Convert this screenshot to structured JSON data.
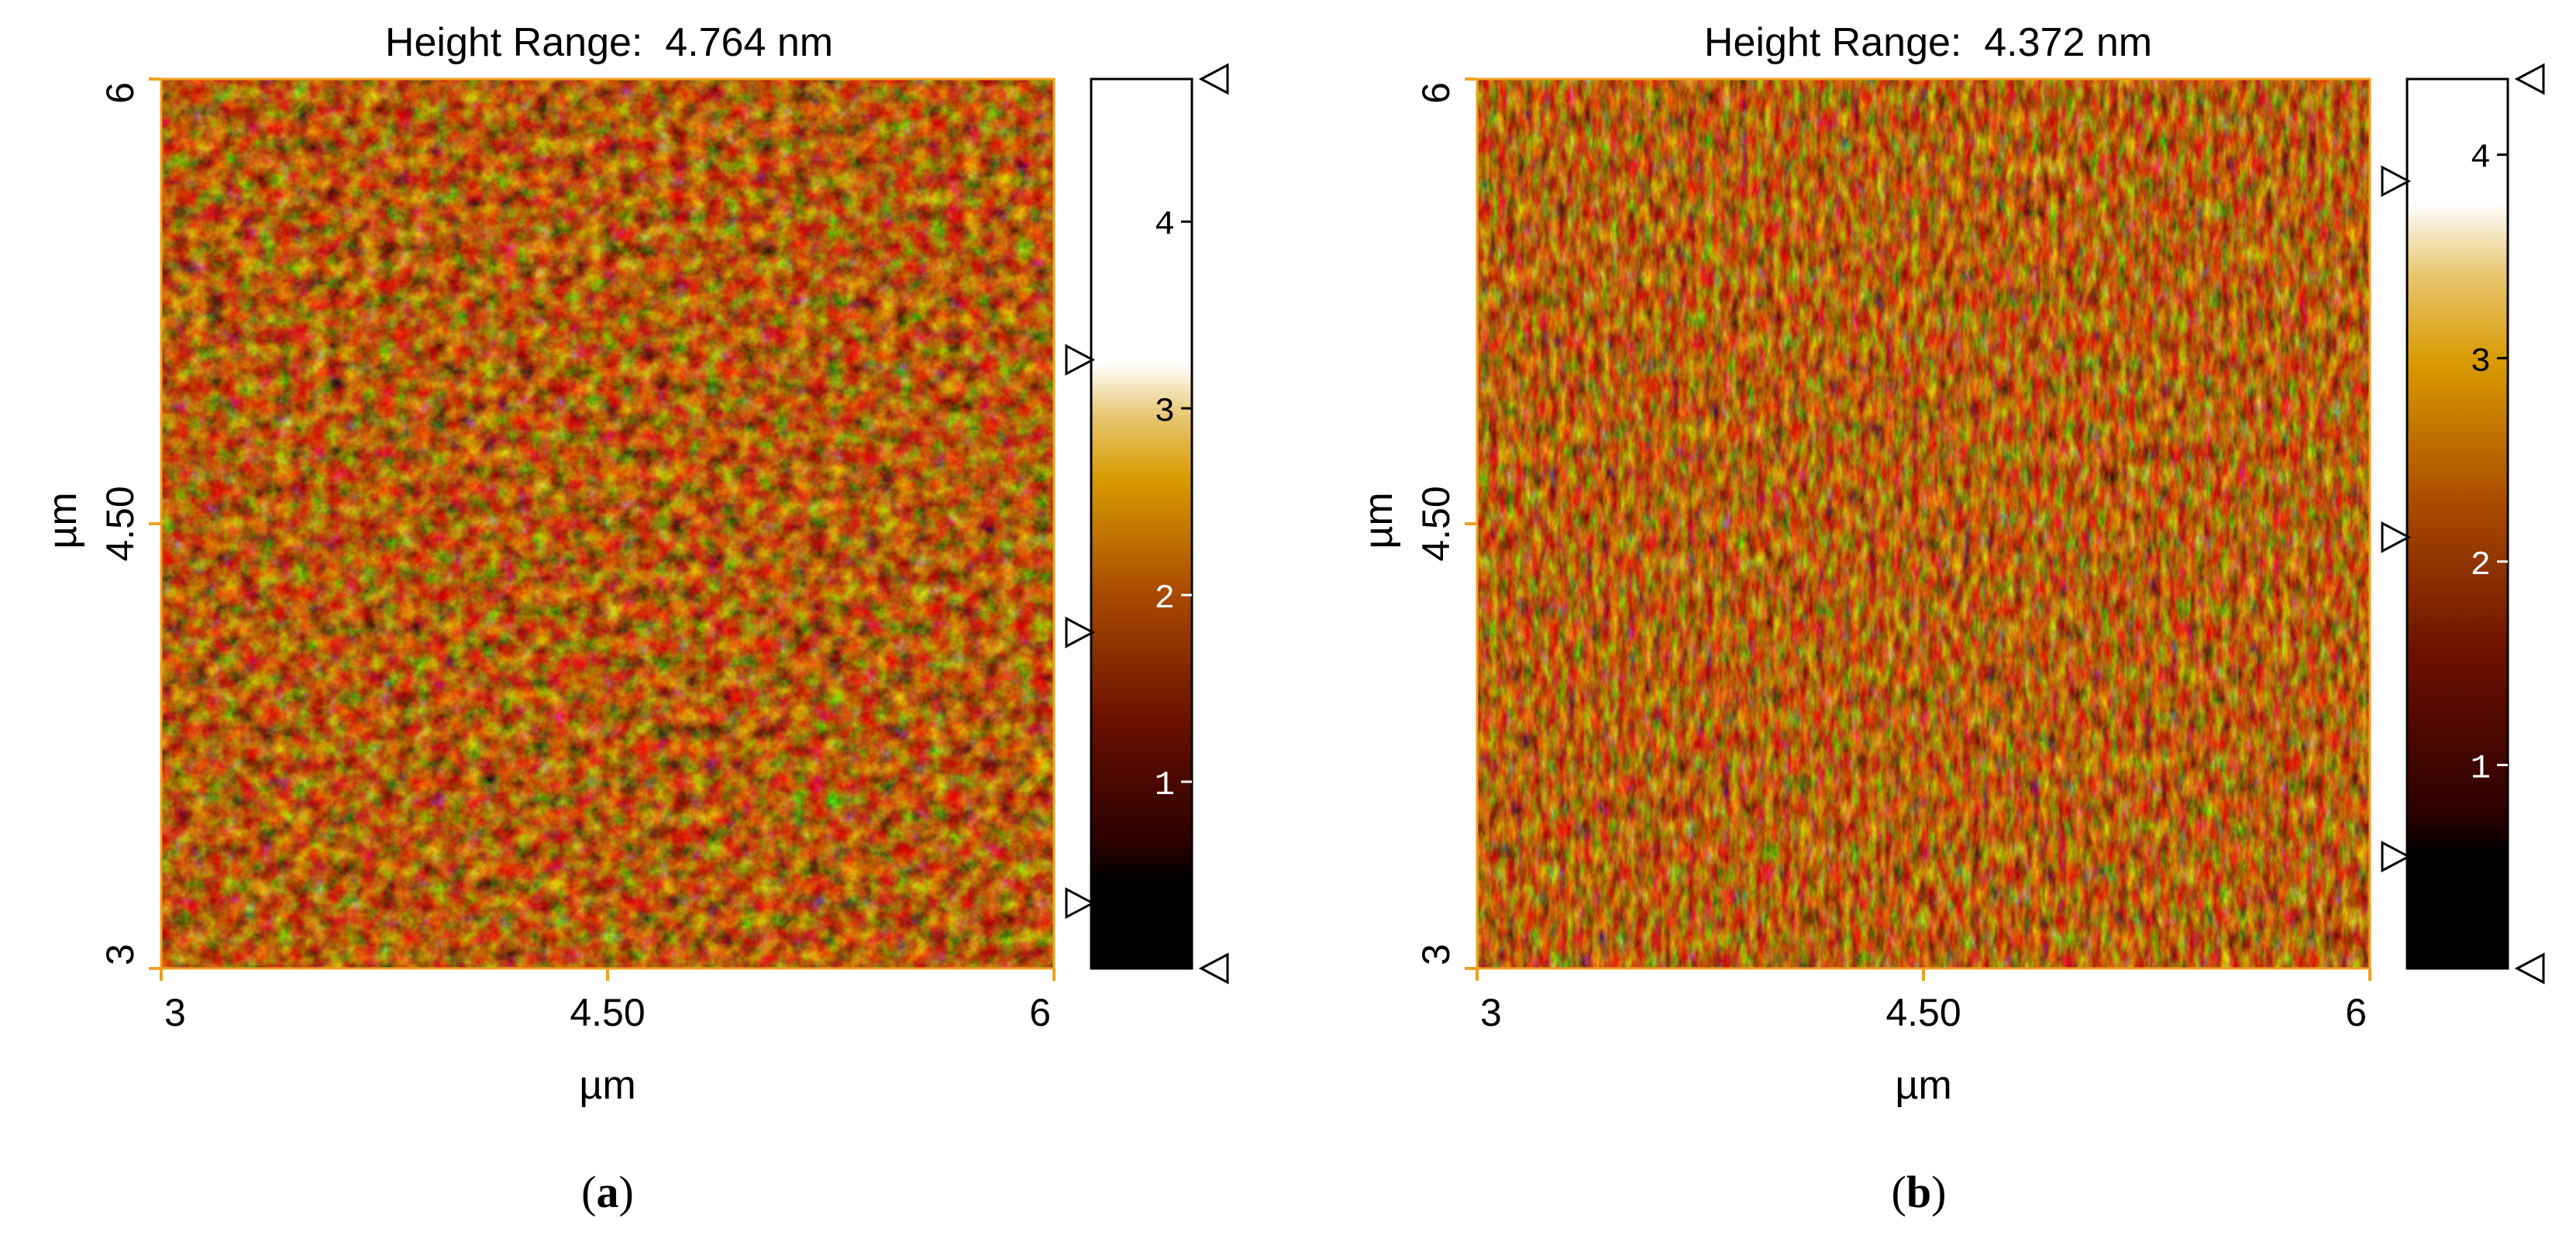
{
  "panels": [
    {
      "id": "a",
      "label": "a",
      "title": "Height Range:  4.764 nm",
      "x_label": "µm",
      "y_label": "µm",
      "x_ticks": [
        "3",
        "4.50",
        "6"
      ],
      "y_ticks": [
        "3",
        "4.50",
        "6"
      ],
      "colorbar_ticks": [
        "1",
        "2",
        "3",
        "4"
      ],
      "colorbar_max": 4.764,
      "colorbar_markers_right": [
        0.0,
        4.764
      ],
      "colorbar_markers_left": [
        0.35,
        1.8,
        3.26
      ]
    },
    {
      "id": "b",
      "label": "b",
      "title": "Height Range:  4.372 nm",
      "x_label": "µm",
      "y_label": "µm",
      "x_ticks": [
        "3",
        "4.50",
        "6"
      ],
      "y_ticks": [
        "3",
        "4.50",
        "6"
      ],
      "colorbar_ticks": [
        "1",
        "2",
        "3",
        "4"
      ],
      "colorbar_max": 4.372,
      "colorbar_markers_right": [
        0.0,
        4.372
      ],
      "colorbar_markers_left": [
        0.55,
        2.12,
        3.87
      ]
    }
  ],
  "chart_data": [
    {
      "type": "heatmap",
      "title": "Height Range:  4.764 nm",
      "xlabel": "µm",
      "ylabel": "µm",
      "xlim": [
        3,
        6
      ],
      "ylim": [
        3,
        6
      ],
      "x_ticks": [
        "3",
        "4.50",
        "6"
      ],
      "y_ticks": [
        "3",
        "4.50",
        "6"
      ],
      "colorbar": {
        "min": 0,
        "max": 4.764,
        "unit": "nm",
        "ticks": [
          1,
          2,
          3,
          4
        ]
      },
      "colormap": [
        "#000000",
        "#3c0000",
        "#8a2a00",
        "#c87810",
        "#d8a000",
        "#f0e0a0",
        "#ffffff"
      ],
      "surface": "granular texture with bright grains, mostly 1.5–3 nm"
    },
    {
      "type": "heatmap",
      "title": "Height Range:  4.372 nm",
      "xlabel": "µm",
      "ylabel": "µm",
      "xlim": [
        3,
        6
      ],
      "ylim": [
        3,
        6
      ],
      "x_ticks": [
        "3",
        "4.50",
        "6"
      ],
      "y_ticks": [
        "3",
        "4.50",
        "6"
      ],
      "colorbar": {
        "min": 0,
        "max": 4.372,
        "unit": "nm",
        "ticks": [
          1,
          2,
          3,
          4
        ]
      },
      "colormap": [
        "#000000",
        "#3c0000",
        "#8a2a00",
        "#c87810",
        "#d8a000",
        "#f0e0a0",
        "#ffffff"
      ],
      "surface": "fine-grained, streaky diagonal texture"
    }
  ]
}
